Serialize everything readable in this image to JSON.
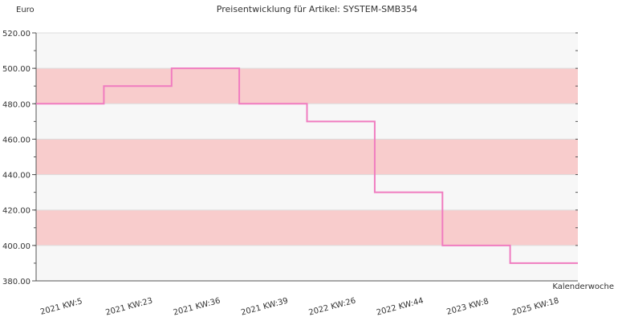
{
  "chart_data": {
    "type": "line",
    "step": true,
    "title": "Preisentwicklung für Artikel: SYSTEM-SMB354",
    "ylabel": "Euro",
    "xlabel": "Kalenderwoche",
    "ylim": [
      380,
      520
    ],
    "y_ticks": [
      "380.00",
      "400.00",
      "420.00",
      "440.00",
      "460.00",
      "480.00",
      "500.00",
      "520.00"
    ],
    "categories": [
      "2021 KW:5",
      "2021 KW:23",
      "2021 KW:36",
      "2021 KW:39",
      "2022 KW:26",
      "2022 KW:44",
      "2023 KW:8",
      "2025 KW:18"
    ],
    "series": [
      {
        "values": [
          480,
          490,
          500,
          480,
          470,
          430,
          400,
          390
        ]
      }
    ],
    "grid": "horizontal",
    "colors": {
      "line": "#f07cc0",
      "band_light": "#f7f7f7",
      "band_pink": "#f8cccc",
      "grid": "#dddddd",
      "axis": "#555555"
    }
  }
}
